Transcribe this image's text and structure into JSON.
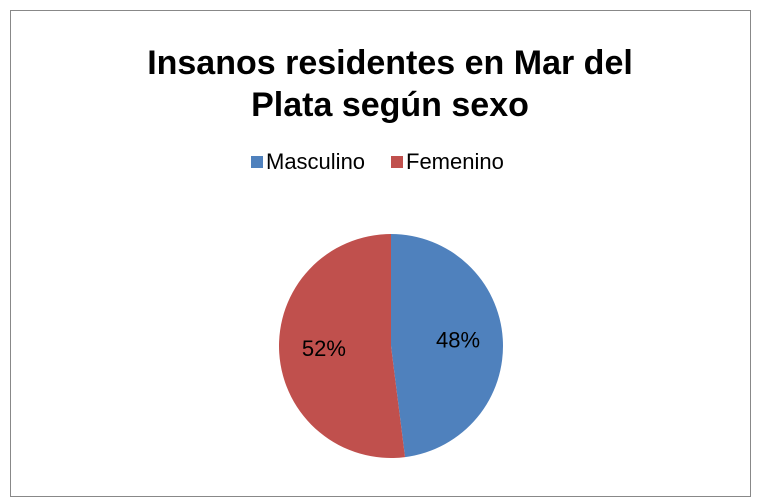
{
  "chart_data": {
    "type": "pie",
    "title": "Insanos residentes en Mar del Plata según sexo",
    "categories": [
      "Masculino",
      "Femenino"
    ],
    "values": [
      48,
      52
    ],
    "value_labels": [
      "48%",
      "52%"
    ],
    "colors": [
      "#4f81bd",
      "#c0504d"
    ],
    "legend": "top"
  }
}
